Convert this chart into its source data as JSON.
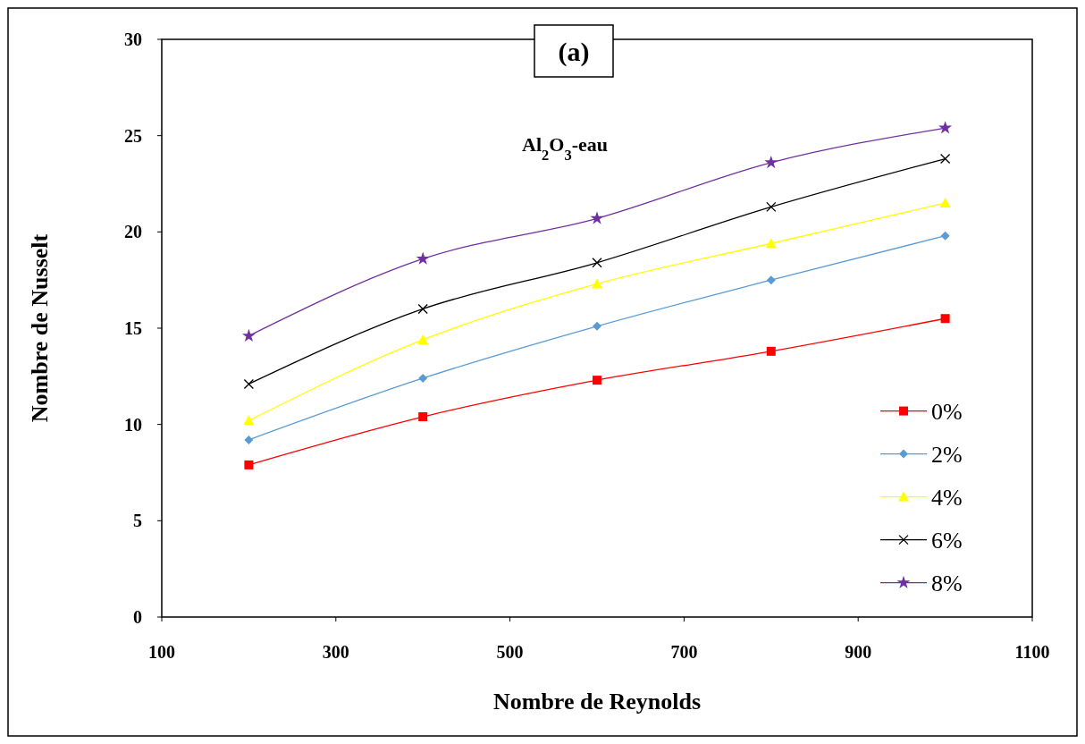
{
  "chart_data": {
    "type": "line",
    "xlabel": "Nombre de Reynolds",
    "ylabel": "Nombre de Nusselt",
    "annotations": [
      "(a)",
      "Al$_{2}$O$_{3}$-eau"
    ],
    "x": [
      200,
      400,
      600,
      800,
      1000
    ],
    "xlim": [
      100,
      1100
    ],
    "xticks": [
      100,
      300,
      500,
      700,
      900,
      1100
    ],
    "ylim": [
      0,
      30
    ],
    "yticks": [
      0,
      5,
      10,
      15,
      20,
      25,
      30
    ],
    "grid": false,
    "legend": "right",
    "line_style": "solid",
    "series": [
      {
        "name": "0%",
        "color": "#ff0000",
        "marker": "square",
        "values": [
          7.9,
          10.4,
          12.3,
          13.8,
          15.5
        ]
      },
      {
        "name": "2%",
        "color": "#5b9bd5",
        "marker": "diamond",
        "values": [
          9.2,
          12.4,
          15.1,
          17.5,
          19.8
        ]
      },
      {
        "name": "4%",
        "color": "#ffff00",
        "marker": "triangle",
        "values": [
          10.2,
          14.4,
          17.3,
          19.4,
          21.5
        ]
      },
      {
        "name": "6%",
        "color": "#000000",
        "marker": "cross",
        "values": [
          12.1,
          16.0,
          18.4,
          21.3,
          23.8
        ]
      },
      {
        "name": "8%",
        "color": "#7030a0",
        "marker": "star",
        "values": [
          14.6,
          18.6,
          20.7,
          23.6,
          25.4
        ]
      }
    ]
  }
}
